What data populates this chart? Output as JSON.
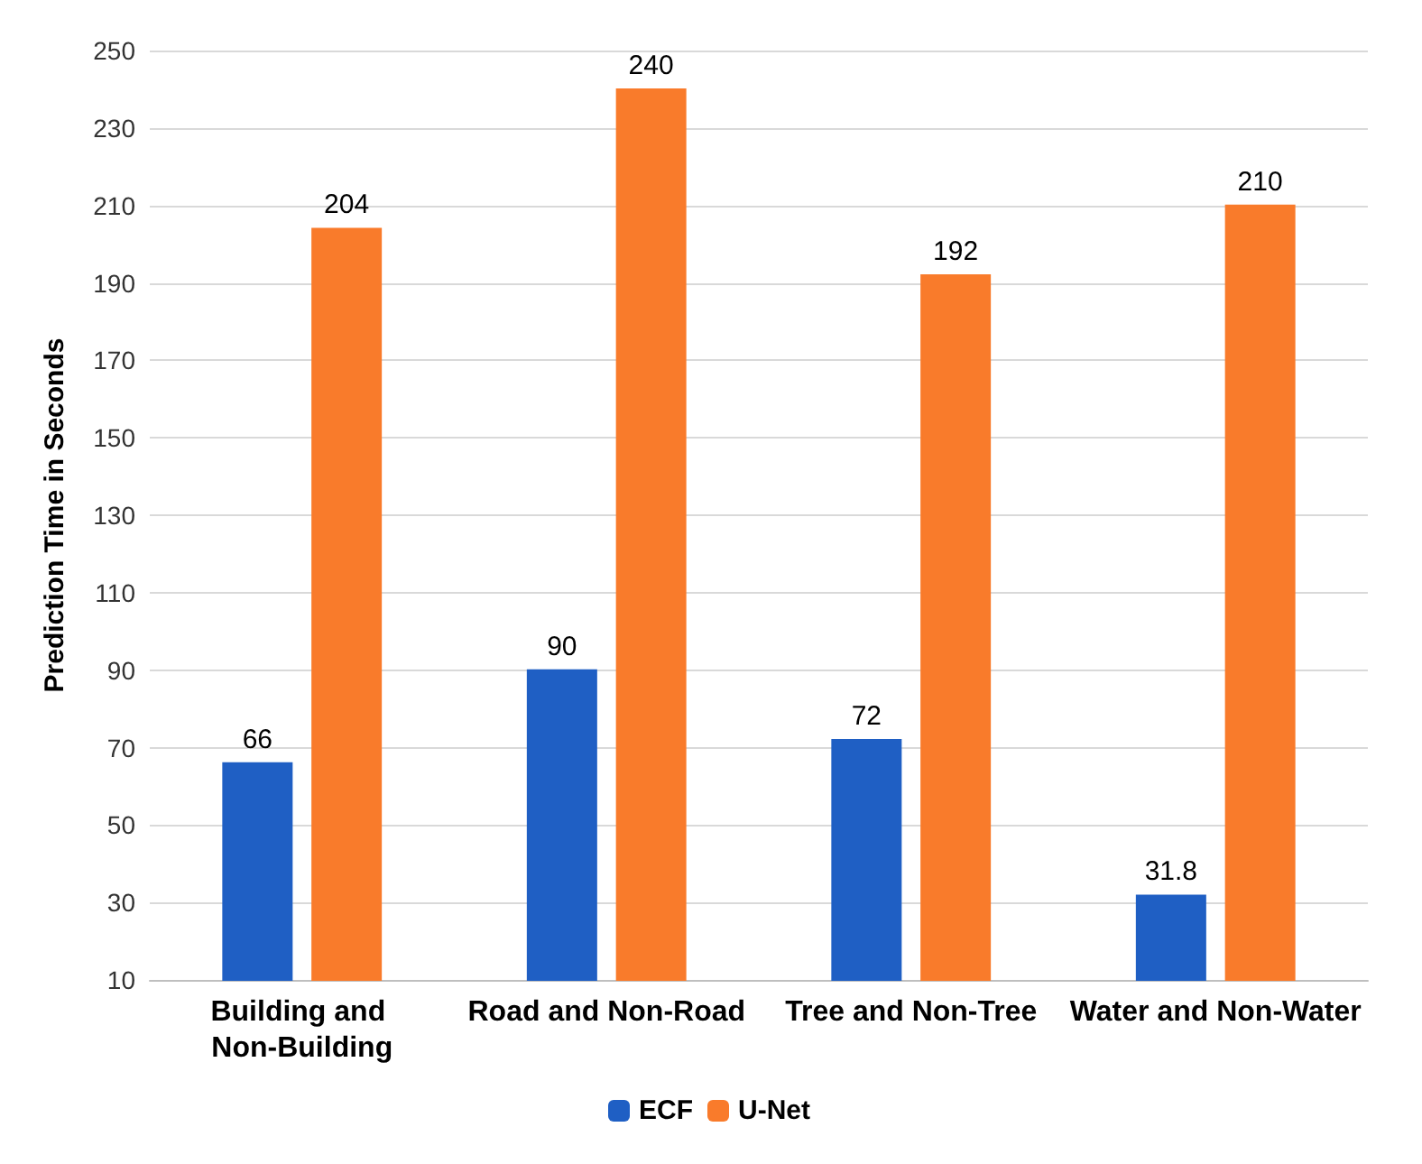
{
  "chart_data": {
    "type": "bar",
    "ylabel": "Prediction Time in Seconds",
    "categories": [
      "Building and Non-Building",
      "Road and Non-Road",
      "Tree and Non-Tree",
      "Water and Non-Water"
    ],
    "series": [
      {
        "name": "ECF",
        "color": "#1f5fc4",
        "values": [
          66,
          90,
          72,
          31.8
        ]
      },
      {
        "name": "U-Net",
        "color": "#f97b2b",
        "values": [
          204,
          240,
          192,
          210
        ]
      }
    ],
    "ylim": [
      10,
      250
    ],
    "yticks": [
      10,
      30,
      50,
      70,
      90,
      110,
      130,
      150,
      170,
      190,
      210,
      230,
      250
    ],
    "grid": "y",
    "legend": "bottom",
    "data_labels": true
  }
}
